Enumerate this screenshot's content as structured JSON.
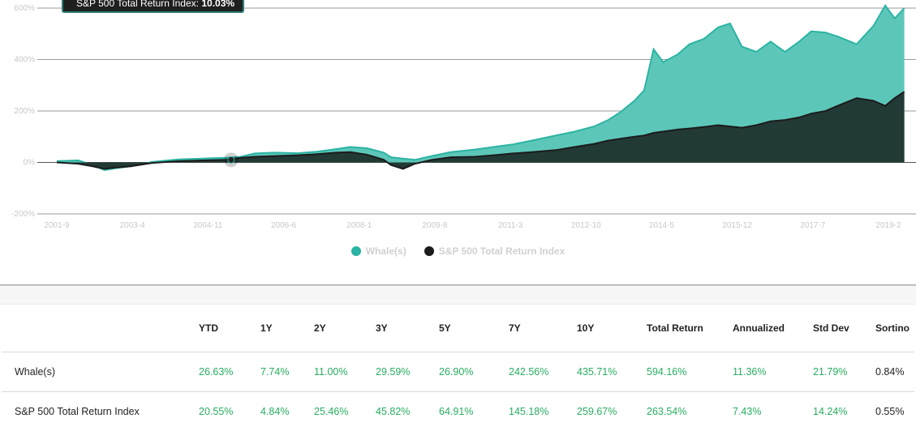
{
  "tooltip": {
    "label": "S&P 500 Total Return Index:",
    "value": "10.03%"
  },
  "chart_data": {
    "type": "area",
    "y_ticks": [
      "600%",
      "400%",
      "200%",
      "0%",
      "-200%"
    ],
    "x_ticks": [
      "2001-9",
      "2003-4",
      "2004-11",
      "2006-6",
      "2008-1",
      "2009-8",
      "2011-3",
      "2012-10",
      "2014-5",
      "2015-12",
      "2017-7",
      "2019-2"
    ],
    "ylim": [
      -200,
      600
    ],
    "grid": true,
    "legend_position": "bottom-center",
    "series": [
      {
        "name": "Whale(s)",
        "color": "#2bb3a3",
        "points": [
          [
            2001.75,
            5
          ],
          [
            2002.2,
            8
          ],
          [
            2002.5,
            -10
          ],
          [
            2002.75,
            -30
          ],
          [
            2003.0,
            -22
          ],
          [
            2003.3,
            -15
          ],
          [
            2003.75,
            2
          ],
          [
            2004.3,
            12
          ],
          [
            2004.8,
            15
          ],
          [
            2005.3,
            18
          ],
          [
            2005.6,
            22
          ],
          [
            2005.9,
            35
          ],
          [
            2006.3,
            38
          ],
          [
            2006.8,
            36
          ],
          [
            2007.2,
            42
          ],
          [
            2007.6,
            52
          ],
          [
            2007.9,
            60
          ],
          [
            2008.25,
            55
          ],
          [
            2008.6,
            38
          ],
          [
            2008.75,
            20
          ],
          [
            2009.0,
            15
          ],
          [
            2009.25,
            10
          ],
          [
            2009.6,
            25
          ],
          [
            2010.0,
            40
          ],
          [
            2010.5,
            50
          ],
          [
            2010.9,
            60
          ],
          [
            2011.3,
            70
          ],
          [
            2011.7,
            85
          ],
          [
            2012.2,
            105
          ],
          [
            2012.6,
            120
          ],
          [
            2013.0,
            140
          ],
          [
            2013.3,
            165
          ],
          [
            2013.55,
            195
          ],
          [
            2013.85,
            240
          ],
          [
            2014.05,
            280
          ],
          [
            2014.25,
            440
          ],
          [
            2014.45,
            390
          ],
          [
            2014.75,
            420
          ],
          [
            2015.0,
            460
          ],
          [
            2015.3,
            480
          ],
          [
            2015.6,
            525
          ],
          [
            2015.85,
            540
          ],
          [
            2016.1,
            450
          ],
          [
            2016.4,
            430
          ],
          [
            2016.7,
            470
          ],
          [
            2017.0,
            430
          ],
          [
            2017.3,
            470
          ],
          [
            2017.55,
            510
          ],
          [
            2017.85,
            505
          ],
          [
            2018.1,
            490
          ],
          [
            2018.5,
            460
          ],
          [
            2018.85,
            530
          ],
          [
            2019.1,
            610
          ],
          [
            2019.3,
            560
          ],
          [
            2019.5,
            600
          ]
        ]
      },
      {
        "name": "S&P 500 Total Return Index",
        "color": "#1b1b1b",
        "points": [
          [
            2001.75,
            0
          ],
          [
            2002.2,
            -5
          ],
          [
            2002.5,
            -15
          ],
          [
            2002.75,
            -25
          ],
          [
            2003.0,
            -20
          ],
          [
            2003.3,
            -15
          ],
          [
            2003.75,
            -2
          ],
          [
            2004.3,
            5
          ],
          [
            2004.8,
            8
          ],
          [
            2005.3,
            10
          ],
          [
            2005.6,
            18
          ],
          [
            2005.9,
            22
          ],
          [
            2006.3,
            25
          ],
          [
            2006.8,
            28
          ],
          [
            2007.2,
            32
          ],
          [
            2007.6,
            38
          ],
          [
            2007.9,
            40
          ],
          [
            2008.25,
            30
          ],
          [
            2008.6,
            10
          ],
          [
            2008.75,
            -10
          ],
          [
            2009.0,
            -25
          ],
          [
            2009.25,
            -5
          ],
          [
            2009.6,
            10
          ],
          [
            2010.0,
            20
          ],
          [
            2010.5,
            22
          ],
          [
            2010.9,
            28
          ],
          [
            2011.3,
            35
          ],
          [
            2011.7,
            40
          ],
          [
            2012.2,
            48
          ],
          [
            2012.6,
            60
          ],
          [
            2013.0,
            72
          ],
          [
            2013.3,
            85
          ],
          [
            2013.55,
            92
          ],
          [
            2013.85,
            100
          ],
          [
            2014.05,
            105
          ],
          [
            2014.25,
            115
          ],
          [
            2014.45,
            120
          ],
          [
            2014.75,
            128
          ],
          [
            2015.0,
            132
          ],
          [
            2015.3,
            138
          ],
          [
            2015.6,
            145
          ],
          [
            2015.85,
            140
          ],
          [
            2016.1,
            135
          ],
          [
            2016.4,
            145
          ],
          [
            2016.7,
            160
          ],
          [
            2017.0,
            165
          ],
          [
            2017.3,
            175
          ],
          [
            2017.55,
            190
          ],
          [
            2017.85,
            200
          ],
          [
            2018.1,
            220
          ],
          [
            2018.5,
            250
          ],
          [
            2018.85,
            240
          ],
          [
            2019.1,
            220
          ],
          [
            2019.3,
            250
          ],
          [
            2019.5,
            275
          ]
        ]
      }
    ]
  },
  "legend": [
    {
      "label": "Whale(s)",
      "color": "#2bb3a3"
    },
    {
      "label": "S&P 500 Total Return Index",
      "color": "#1b1b1b"
    }
  ],
  "table": {
    "headers": [
      "",
      "YTD",
      "1Y",
      "2Y",
      "3Y",
      "5Y",
      "7Y",
      "10Y",
      "Total Return",
      "Annualized",
      "Std Dev",
      "Sortino"
    ],
    "rows": [
      {
        "name": "Whale(s)",
        "values": [
          "26.63%",
          "7.74%",
          "11.00%",
          "29.59%",
          "26.90%",
          "242.56%",
          "435.71%",
          "594.16%",
          "11.36%",
          "21.79%",
          "0.84%"
        ]
      },
      {
        "name": "S&P 500 Total Return Index",
        "values": [
          "20.55%",
          "4.84%",
          "25.46%",
          "45.82%",
          "64.91%",
          "145.18%",
          "259.67%",
          "263.54%",
          "7.43%",
          "14.24%",
          "0.55%"
        ]
      }
    ]
  }
}
